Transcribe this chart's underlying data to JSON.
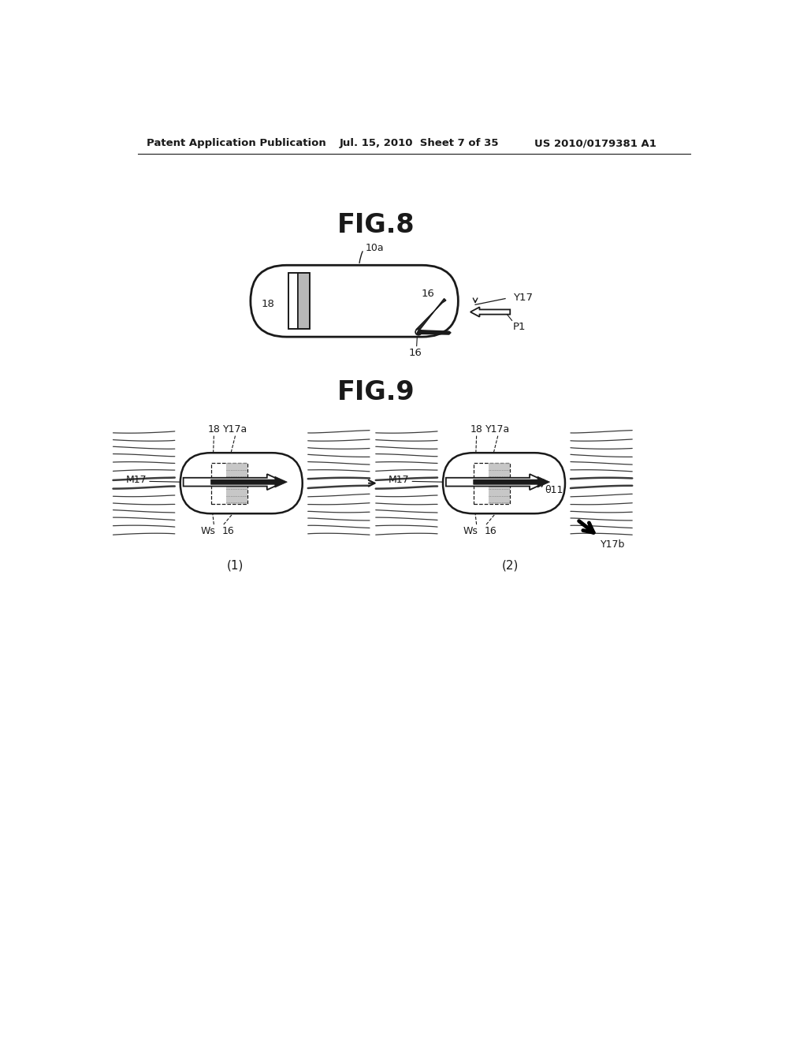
{
  "bg_color": "#ffffff",
  "line_color": "#1a1a1a",
  "header_left": "Patent Application Publication",
  "header_mid": "Jul. 15, 2010  Sheet 7 of 35",
  "header_right": "US 2010/0179381 A1",
  "fig8_title": "FIG.8",
  "fig9_title": "FIG.9",
  "fig8_label_10a": "10a",
  "fig8_label_18": "18",
  "fig8_label_16a": "16",
  "fig8_label_16b": "16",
  "fig8_label_Y17": "Y17",
  "fig8_label_P1": "P1",
  "fig9_sub1": "(1)",
  "fig9_sub2": "(2)"
}
